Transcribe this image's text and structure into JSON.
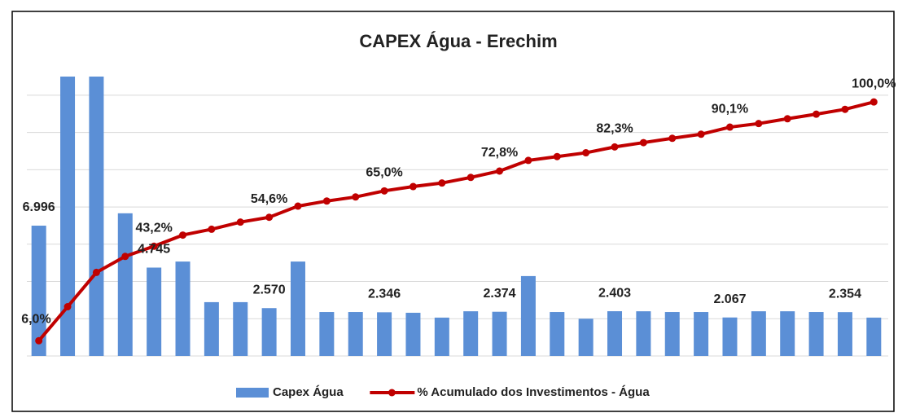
{
  "chart_data": {
    "type": "bar-line",
    "title": "CAPEX Água  - Erechim",
    "categories": [
      null,
      null,
      null,
      null,
      null,
      null,
      null,
      null,
      null,
      null,
      null,
      null,
      null,
      null,
      null,
      null,
      null,
      null,
      null,
      null,
      null,
      null,
      null,
      null,
      null,
      null,
      null,
      null,
      null,
      null
    ],
    "series": [
      {
        "name": "Capex Água",
        "type": "bar",
        "color": "#5b8fd6",
        "values": [
          6.996,
          15.0,
          15.0,
          7.66,
          4.745,
          5.07,
          2.89,
          2.89,
          2.57,
          5.07,
          2.36,
          2.36,
          2.346,
          2.32,
          2.06,
          2.4,
          2.374,
          4.29,
          2.36,
          2.0,
          2.403,
          2.4,
          2.36,
          2.36,
          2.067,
          2.4,
          2.4,
          2.36,
          2.354,
          2.06
        ],
        "value_labels": [
          "6.996",
          null,
          null,
          null,
          "4.745",
          null,
          null,
          null,
          "2.570",
          null,
          null,
          null,
          "2.346",
          null,
          null,
          null,
          "2.374",
          null,
          null,
          null,
          "2.403",
          null,
          null,
          null,
          "2.067",
          null,
          null,
          null,
          "2.354",
          null
        ]
      },
      {
        "name": "% Acumulado dos Investimentos - Água",
        "type": "line",
        "axis": "y2",
        "color": "#c00000",
        "values": [
          6.0,
          19.4,
          32.9,
          39.2,
          43.2,
          47.6,
          49.9,
          52.7,
          54.6,
          59.0,
          61.0,
          62.6,
          65.0,
          66.7,
          68.1,
          70.3,
          72.8,
          77.0,
          78.5,
          80.0,
          82.3,
          84.0,
          85.7,
          87.3,
          90.1,
          91.5,
          93.4,
          95.2,
          97.1,
          100.0
        ],
        "value_labels": [
          "6,0%",
          null,
          null,
          null,
          "43,2%",
          null,
          null,
          null,
          "54,6%",
          null,
          null,
          null,
          "65,0%",
          null,
          null,
          null,
          "72,8%",
          null,
          null,
          null,
          "82,3%",
          null,
          null,
          null,
          "90,1%",
          null,
          null,
          null,
          null,
          "100,0%"
        ]
      }
    ],
    "ylim": [
      0,
      15
    ],
    "yticks": [
      0,
      2,
      4,
      6,
      8,
      10,
      12,
      14
    ],
    "y2lim": [
      0,
      110
    ],
    "grid": true
  }
}
